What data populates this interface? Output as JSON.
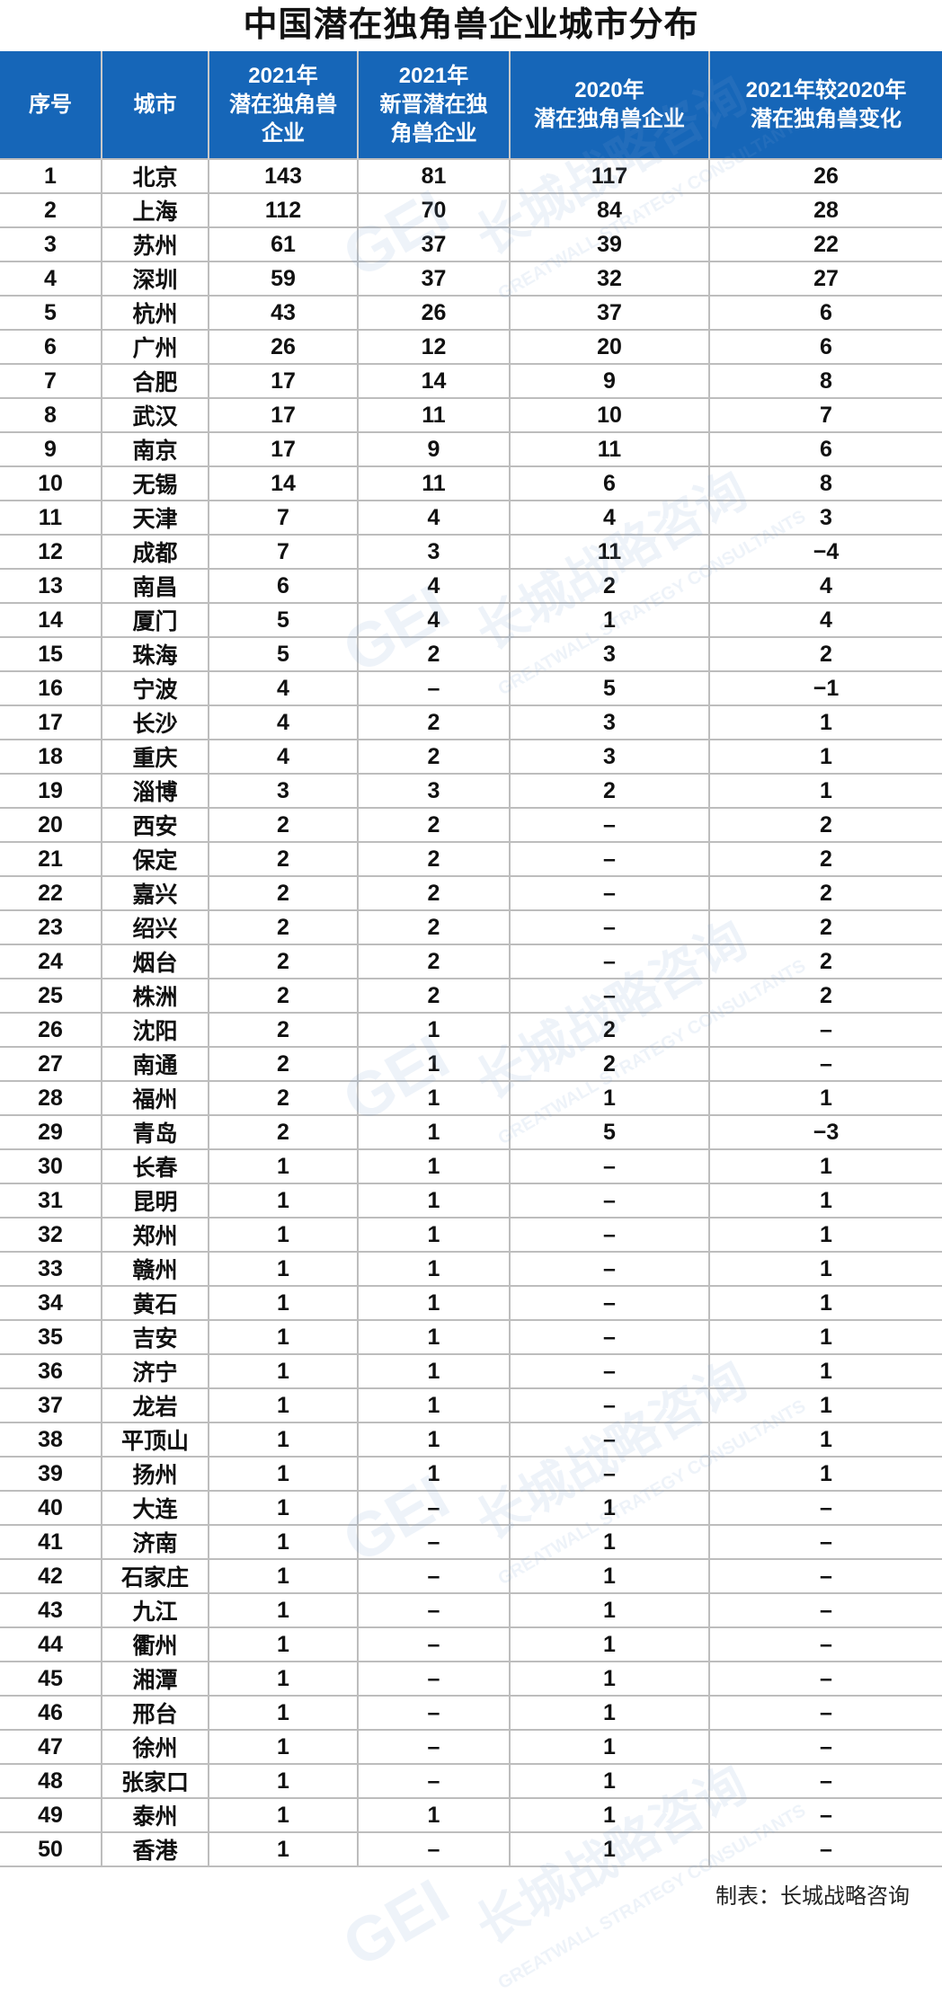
{
  "title": "中国潜在独角兽企业城市分布",
  "columns": [
    "序号",
    "城市",
    "2021年\n潜在独角兽\n企业",
    "2021年\n新晋潜在独\n角兽企业",
    "2020年\n潜在独角兽企业",
    "2021年较2020年\n潜在独角兽变化"
  ],
  "rows": [
    [
      "1",
      "北京",
      "143",
      "81",
      "117",
      "26"
    ],
    [
      "2",
      "上海",
      "112",
      "70",
      "84",
      "28"
    ],
    [
      "3",
      "苏州",
      "61",
      "37",
      "39",
      "22"
    ],
    [
      "4",
      "深圳",
      "59",
      "37",
      "32",
      "27"
    ],
    [
      "5",
      "杭州",
      "43",
      "26",
      "37",
      "6"
    ],
    [
      "6",
      "广州",
      "26",
      "12",
      "20",
      "6"
    ],
    [
      "7",
      "合肥",
      "17",
      "14",
      "9",
      "8"
    ],
    [
      "8",
      "武汉",
      "17",
      "11",
      "10",
      "7"
    ],
    [
      "9",
      "南京",
      "17",
      "9",
      "11",
      "6"
    ],
    [
      "10",
      "无锡",
      "14",
      "11",
      "6",
      "8"
    ],
    [
      "11",
      "天津",
      "7",
      "4",
      "4",
      "3"
    ],
    [
      "12",
      "成都",
      "7",
      "3",
      "11",
      "−4"
    ],
    [
      "13",
      "南昌",
      "6",
      "4",
      "2",
      "4"
    ],
    [
      "14",
      "厦门",
      "5",
      "4",
      "1",
      "4"
    ],
    [
      "15",
      "珠海",
      "5",
      "2",
      "3",
      "2"
    ],
    [
      "16",
      "宁波",
      "4",
      "–",
      "5",
      "−1"
    ],
    [
      "17",
      "长沙",
      "4",
      "2",
      "3",
      "1"
    ],
    [
      "18",
      "重庆",
      "4",
      "2",
      "3",
      "1"
    ],
    [
      "19",
      "淄博",
      "3",
      "3",
      "2",
      "1"
    ],
    [
      "20",
      "西安",
      "2",
      "2",
      "–",
      "2"
    ],
    [
      "21",
      "保定",
      "2",
      "2",
      "–",
      "2"
    ],
    [
      "22",
      "嘉兴",
      "2",
      "2",
      "–",
      "2"
    ],
    [
      "23",
      "绍兴",
      "2",
      "2",
      "–",
      "2"
    ],
    [
      "24",
      "烟台",
      "2",
      "2",
      "–",
      "2"
    ],
    [
      "25",
      "株洲",
      "2",
      "2",
      "–",
      "2"
    ],
    [
      "26",
      "沈阳",
      "2",
      "1",
      "2",
      "–"
    ],
    [
      "27",
      "南通",
      "2",
      "1",
      "2",
      "–"
    ],
    [
      "28",
      "福州",
      "2",
      "1",
      "1",
      "1"
    ],
    [
      "29",
      "青岛",
      "2",
      "1",
      "5",
      "−3"
    ],
    [
      "30",
      "长春",
      "1",
      "1",
      "–",
      "1"
    ],
    [
      "31",
      "昆明",
      "1",
      "1",
      "–",
      "1"
    ],
    [
      "32",
      "郑州",
      "1",
      "1",
      "–",
      "1"
    ],
    [
      "33",
      "赣州",
      "1",
      "1",
      "–",
      "1"
    ],
    [
      "34",
      "黄石",
      "1",
      "1",
      "–",
      "1"
    ],
    [
      "35",
      "吉安",
      "1",
      "1",
      "–",
      "1"
    ],
    [
      "36",
      "济宁",
      "1",
      "1",
      "–",
      "1"
    ],
    [
      "37",
      "龙岩",
      "1",
      "1",
      "–",
      "1"
    ],
    [
      "38",
      "平顶山",
      "1",
      "1",
      "–",
      "1"
    ],
    [
      "39",
      "扬州",
      "1",
      "1",
      "–",
      "1"
    ],
    [
      "40",
      "大连",
      "1",
      "–",
      "1",
      "–"
    ],
    [
      "41",
      "济南",
      "1",
      "–",
      "1",
      "–"
    ],
    [
      "42",
      "石家庄",
      "1",
      "–",
      "1",
      "–"
    ],
    [
      "43",
      "九江",
      "1",
      "–",
      "1",
      "–"
    ],
    [
      "44",
      "衢州",
      "1",
      "–",
      "1",
      "–"
    ],
    [
      "45",
      "湘潭",
      "1",
      "–",
      "1",
      "–"
    ],
    [
      "46",
      "邢台",
      "1",
      "–",
      "1",
      "–"
    ],
    [
      "47",
      "徐州",
      "1",
      "–",
      "1",
      "–"
    ],
    [
      "48",
      "张家口",
      "1",
      "–",
      "1",
      "–"
    ],
    [
      "49",
      "泰州",
      "1",
      "1",
      "1",
      "–"
    ],
    [
      "50",
      "香港",
      "1",
      "–",
      "1",
      "–"
    ]
  ],
  "footer": "制表：长城战略咨询",
  "watermark": {
    "logo": "GEI",
    "cn": "长城战略咨询",
    "en": "GREATWALL STRATEGY CONSULTANTS"
  },
  "colors": {
    "header_bg": "#1666b8",
    "header_text": "#ffffff",
    "grid": "#bdbdbd"
  }
}
